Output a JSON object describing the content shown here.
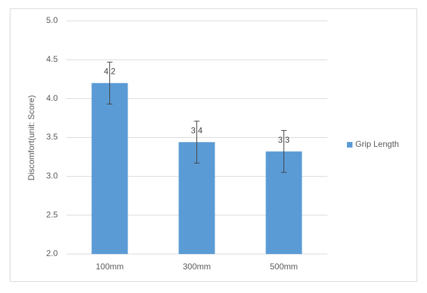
{
  "chart_data": {
    "type": "bar",
    "y_label": "Discomfort(unit: Score)",
    "categories": [
      "100mm",
      "300mm",
      "500mm"
    ],
    "series": [
      {
        "name": "Grip Length",
        "color": "#5b9bd5",
        "values": [
          4.2,
          3.44,
          3.32
        ],
        "value_labels": [
          "4.2",
          "3.4",
          "3.3"
        ],
        "errors": [
          0.27,
          0.27,
          0.27
        ]
      }
    ],
    "ylim": [
      2.0,
      5.0
    ],
    "yticks": [
      {
        "value": 2,
        "label": "2.0"
      },
      2.5,
      {
        "value": 3,
        "label": "3.0"
      },
      3.5,
      {
        "value": 4,
        "label": "4.0"
      },
      4.5,
      {
        "value": 5,
        "label": "5.0"
      }
    ],
    "grid": true,
    "legend": "right"
  }
}
